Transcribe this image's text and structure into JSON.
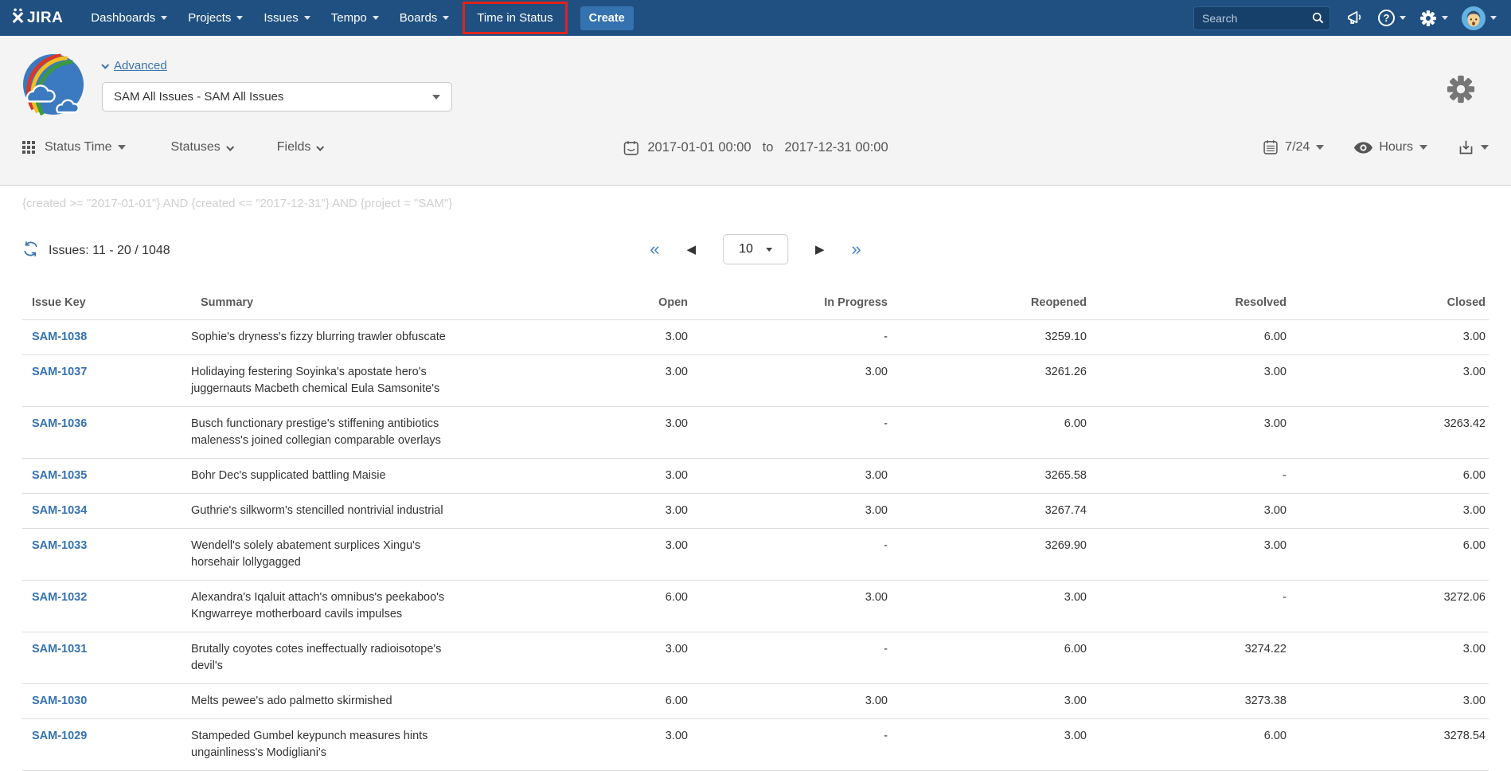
{
  "navbar": {
    "logo_text": "JIRA",
    "items": [
      {
        "label": "Dashboards"
      },
      {
        "label": "Projects"
      },
      {
        "label": "Issues"
      },
      {
        "label": "Tempo"
      },
      {
        "label": "Boards"
      },
      {
        "label": "Time in Status"
      }
    ],
    "create_label": "Create",
    "search_placeholder": "Search",
    "help_glyph": "?",
    "colors": {
      "bar": "#205081",
      "create_button": "#3572b0",
      "highlight_box": "#e0231c"
    }
  },
  "header": {
    "advanced_label": "Advanced",
    "filter_select_value": "SAM All Issues - SAM All Issues"
  },
  "toolbar": {
    "status_time_label": "Status Time",
    "statuses_label": "Statuses",
    "fields_label": "Fields",
    "date_from": "2017-01-01 00:00",
    "date_join": "to",
    "date_to": "2017-12-31 00:00",
    "calendar_mode": "7/24",
    "unit_label": "Hours"
  },
  "query_text": "{created >= \"2017-01-01\"} AND {created <= \"2017-12-31\"} AND {project = \"SAM\"}",
  "results": {
    "issues_label": "Issues: 11 - 20 / 1048",
    "page_size": "10",
    "first_glyph": "«",
    "prev_glyph": "◀",
    "next_glyph": "▶",
    "last_glyph": "»"
  },
  "table": {
    "headers": [
      "Issue Key",
      "Summary",
      "Open",
      "In Progress",
      "Reopened",
      "Resolved",
      "Closed"
    ],
    "rows": [
      {
        "key": "SAM-1038",
        "summary": "Sophie's dryness's fizzy blurring trawler obfuscate",
        "open": "3.00",
        "in_progress": "-",
        "reopened": "3259.10",
        "resolved": "6.00",
        "closed": "3.00"
      },
      {
        "key": "SAM-1037",
        "summary": "Holidaying festering Soyinka's apostate hero's juggernauts Macbeth chemical Eula Samsonite's",
        "open": "3.00",
        "in_progress": "3.00",
        "reopened": "3261.26",
        "resolved": "3.00",
        "closed": "3.00"
      },
      {
        "key": "SAM-1036",
        "summary": "Busch functionary prestige's stiffening antibiotics maleness's joined collegian comparable overlays",
        "open": "3.00",
        "in_progress": "-",
        "reopened": "6.00",
        "resolved": "3.00",
        "closed": "3263.42"
      },
      {
        "key": "SAM-1035",
        "summary": "Bohr Dec's supplicated battling Maisie",
        "open": "3.00",
        "in_progress": "3.00",
        "reopened": "3265.58",
        "resolved": "-",
        "closed": "6.00"
      },
      {
        "key": "SAM-1034",
        "summary": "Guthrie's silkworm's stencilled nontrivial industrial",
        "open": "3.00",
        "in_progress": "3.00",
        "reopened": "3267.74",
        "resolved": "3.00",
        "closed": "3.00"
      },
      {
        "key": "SAM-1033",
        "summary": "Wendell's solely abatement surplices Xingu's horsehair lollygagged",
        "open": "3.00",
        "in_progress": "-",
        "reopened": "3269.90",
        "resolved": "3.00",
        "closed": "6.00"
      },
      {
        "key": "SAM-1032",
        "summary": "Alexandra's Iqaluit attach's omnibus's peekaboo's Kngwarreye motherboard cavils impulses",
        "open": "6.00",
        "in_progress": "3.00",
        "reopened": "3.00",
        "resolved": "-",
        "closed": "3272.06"
      },
      {
        "key": "SAM-1031",
        "summary": "Brutally coyotes cotes ineffectually radioisotope's devil's",
        "open": "3.00",
        "in_progress": "-",
        "reopened": "6.00",
        "resolved": "3274.22",
        "closed": "3.00"
      },
      {
        "key": "SAM-1030",
        "summary": "Melts pewee's ado palmetto skirmished",
        "open": "6.00",
        "in_progress": "3.00",
        "reopened": "3.00",
        "resolved": "3273.38",
        "closed": "3.00"
      },
      {
        "key": "SAM-1029",
        "summary": "Stampeded Gumbel keypunch measures hints ungainliness's Modigliani's",
        "open": "3.00",
        "in_progress": "-",
        "reopened": "3.00",
        "resolved": "6.00",
        "closed": "3278.54"
      }
    ]
  }
}
